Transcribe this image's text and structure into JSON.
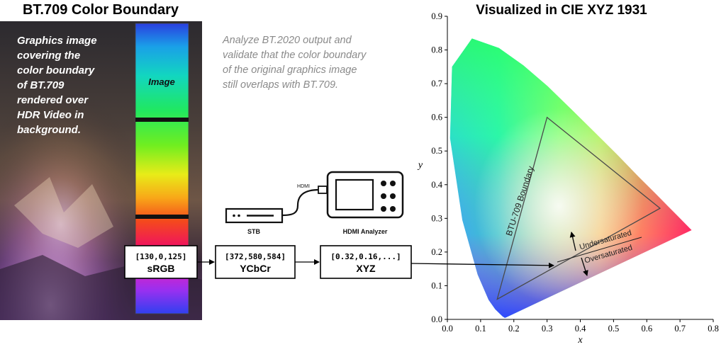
{
  "left_panel": {
    "title": "BT.709 Color Boundary",
    "caption_lines": [
      "Graphics image",
      "covering the",
      "color boundary",
      "of BT.709",
      "rendered over",
      "HDR Video in",
      "background."
    ],
    "image_label": "Image"
  },
  "analysis_note": {
    "lines": [
      "Analyze BT.2020 output and",
      "validate that the color boundary",
      "of the original graphics image",
      "still overlaps with BT.709."
    ]
  },
  "hardware": {
    "cable_label": "HDMI",
    "stb_label": "STB",
    "analyzer_label": "HDMI Analyzer"
  },
  "pipeline": [
    {
      "value": "[130,0,125]",
      "label": "sRGB"
    },
    {
      "value": "[372,580,584]",
      "label": "YCbCr"
    },
    {
      "value": "[0.32,0.16,...]",
      "label": "XYZ"
    }
  ],
  "chart": {
    "title": "Visualized in CIE XYZ 1931",
    "xlabel": "x",
    "ylabel": "y",
    "x_ticks": [
      "0.0",
      "0.1",
      "0.2",
      "0.3",
      "0.4",
      "0.5",
      "0.6",
      "0.7",
      "0.8"
    ],
    "y_ticks": [
      "0.0",
      "0.1",
      "0.2",
      "0.3",
      "0.4",
      "0.5",
      "0.6",
      "0.7",
      "0.8",
      "0.9"
    ],
    "boundary_label": "BTU-709 Boundary",
    "undersaturated_label": "Undersaturated",
    "oversaturated_label": "Oversaturated"
  },
  "chart_data": {
    "type": "scatter",
    "title": "Visualized in CIE XYZ 1931",
    "xlabel": "x",
    "ylabel": "y",
    "xlim": [
      0,
      0.8
    ],
    "ylim": [
      0,
      0.9
    ],
    "bt709_triangle": [
      [
        0.64,
        0.33
      ],
      [
        0.3,
        0.6
      ],
      [
        0.15,
        0.06
      ]
    ],
    "sample_point": [
      0.32,
      0.16
    ],
    "spectral_locus": [
      [
        0.175,
        0.005
      ],
      [
        0.174,
        0.005
      ],
      [
        0.172,
        0.005
      ],
      [
        0.166,
        0.009
      ],
      [
        0.144,
        0.03
      ],
      [
        0.124,
        0.058
      ],
      [
        0.091,
        0.133
      ],
      [
        0.045,
        0.295
      ],
      [
        0.008,
        0.538
      ],
      [
        0.014,
        0.75
      ],
      [
        0.074,
        0.834
      ],
      [
        0.155,
        0.806
      ],
      [
        0.229,
        0.754
      ],
      [
        0.302,
        0.692
      ],
      [
        0.373,
        0.624
      ],
      [
        0.444,
        0.555
      ],
      [
        0.513,
        0.487
      ],
      [
        0.575,
        0.424
      ],
      [
        0.627,
        0.373
      ],
      [
        0.666,
        0.334
      ],
      [
        0.692,
        0.308
      ],
      [
        0.735,
        0.265
      ]
    ],
    "colors": {
      "bt709_boundary": "#555555",
      "spectral_gamut": "rainbow"
    }
  },
  "colors": {
    "band_separator": "#111111",
    "box_border": "#000000",
    "note_text": "#888888"
  }
}
